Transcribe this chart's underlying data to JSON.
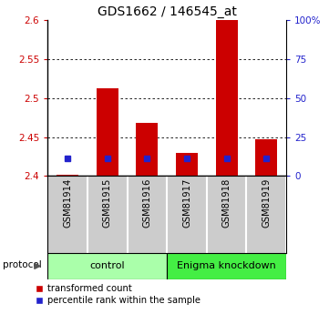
{
  "title": "GDS1662 / 146545_at",
  "samples": [
    "GSM81914",
    "GSM81915",
    "GSM81916",
    "GSM81917",
    "GSM81918",
    "GSM81919"
  ],
  "red_values": [
    2.401,
    2.513,
    2.468,
    2.43,
    2.6,
    2.447
  ],
  "blue_values": [
    2.423,
    2.423,
    2.423,
    2.423,
    2.423,
    2.423
  ],
  "ylim_left": [
    2.4,
    2.6
  ],
  "yticks_left": [
    2.4,
    2.45,
    2.5,
    2.55,
    2.6
  ],
  "ytick_labels_left": [
    "2.4",
    "2.45",
    "2.5",
    "2.55",
    "2.6"
  ],
  "ylim_right": [
    0,
    100
  ],
  "yticks_right": [
    0,
    25,
    50,
    75,
    100
  ],
  "ytick_labels_right": [
    "0",
    "25",
    "50",
    "75",
    "100%"
  ],
  "bar_color": "#cc0000",
  "blue_color": "#2222cc",
  "bar_width": 0.55,
  "groups": [
    {
      "label": "control",
      "indices": [
        0,
        1,
        2
      ],
      "color": "#aaffaa"
    },
    {
      "label": "Enigma knockdown",
      "indices": [
        3,
        4,
        5
      ],
      "color": "#44ee44"
    }
  ],
  "protocol_label": "protocol",
  "legend_red": "transformed count",
  "legend_blue": "percentile rank within the sample",
  "left_label_color": "#cc0000",
  "right_label_color": "#2222cc",
  "sample_bg": "#cccccc",
  "figsize": [
    3.61,
    3.45
  ],
  "dpi": 100
}
